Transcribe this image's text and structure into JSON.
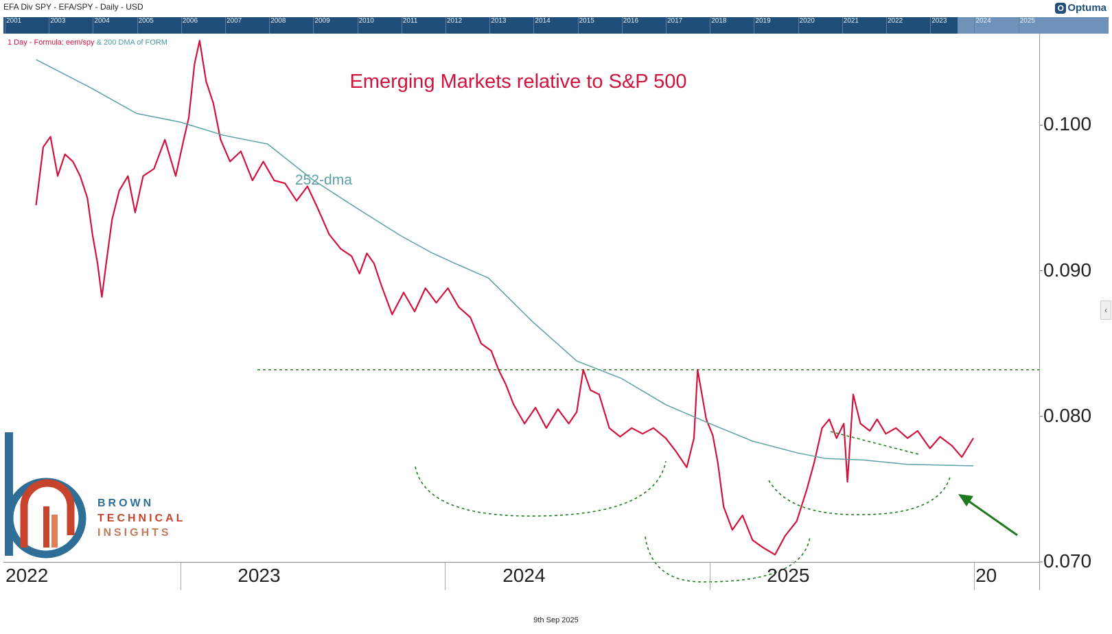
{
  "header": {
    "title": "EFA Div SPY -  EFA/SPY - Daily - USD",
    "brand": "Optuma"
  },
  "overview_strip": {
    "years": [
      "2001",
      "2003",
      "2004",
      "2005",
      "2006",
      "2007",
      "2008",
      "2009",
      "2010",
      "2011",
      "2012",
      "2013",
      "2014",
      "2015",
      "2016",
      "2017",
      "2018",
      "2019",
      "2020",
      "2021",
      "2022",
      "2023",
      "2024",
      "2025"
    ]
  },
  "legend": {
    "main": "1 Day - Formula:  eem/spy",
    "secondary": "& 200 DMA of FORM"
  },
  "annotations": {
    "dma_label": "252-dma"
  },
  "branding": {
    "line1": "BROWN",
    "line2": "TECHNICAL",
    "line3": "INSIGHTS"
  },
  "footer": {
    "date": "9th Sep 2025"
  },
  "colors": {
    "ratio": "#d0133d",
    "dma": "#5aa0a5",
    "support": "#1e7a1e",
    "arrow": "#1e7a1e",
    "strip": "#1f4e79"
  },
  "chart_data": {
    "type": "line",
    "title": "Emerging Markets relative to S&P 500",
    "y_axis": {
      "ticks": [
        "0.070",
        "0.080",
        "0.090",
        "0.100"
      ],
      "ylim": [
        0.07,
        0.106
      ],
      "position": "right"
    },
    "x_axis": {
      "ticks": [
        "2022",
        "2023",
        "2024",
        "2025",
        "20"
      ]
    },
    "resistance_level": 0.0832,
    "series": [
      {
        "name": "1 Day - Formula: eem/spy",
        "points": [
          [
            "2022-06-15",
            0.0945
          ],
          [
            "2022-06-25",
            0.0985
          ],
          [
            "2022-07-05",
            0.0992
          ],
          [
            "2022-07-15",
            0.0965
          ],
          [
            "2022-07-25",
            0.098
          ],
          [
            "2022-08-05",
            0.0975
          ],
          [
            "2022-08-15",
            0.0965
          ],
          [
            "2022-08-25",
            0.095
          ],
          [
            "2022-09-01",
            0.0925
          ],
          [
            "2022-09-08",
            0.0905
          ],
          [
            "2022-09-14",
            0.0882
          ],
          [
            "2022-09-20",
            0.0905
          ],
          [
            "2022-09-28",
            0.0935
          ],
          [
            "2022-10-08",
            0.0955
          ],
          [
            "2022-10-20",
            0.0965
          ],
          [
            "2022-10-30",
            0.094
          ],
          [
            "2022-11-10",
            0.0965
          ],
          [
            "2022-11-25",
            0.097
          ],
          [
            "2022-12-10",
            0.099
          ],
          [
            "2022-12-25",
            0.0965
          ],
          [
            "2023-01-05",
            0.099
          ],
          [
            "2023-01-12",
            0.1005
          ],
          [
            "2023-01-20",
            0.1042
          ],
          [
            "2023-01-27",
            0.1058
          ],
          [
            "2023-02-05",
            0.103
          ],
          [
            "2023-02-15",
            0.1015
          ],
          [
            "2023-02-25",
            0.099
          ],
          [
            "2023-03-10",
            0.0975
          ],
          [
            "2023-03-25",
            0.0982
          ],
          [
            "2023-04-10",
            0.0962
          ],
          [
            "2023-04-25",
            0.0975
          ],
          [
            "2023-05-10",
            0.0962
          ],
          [
            "2023-05-25",
            0.096
          ],
          [
            "2023-06-10",
            0.0948
          ],
          [
            "2023-06-25",
            0.0958
          ],
          [
            "2023-07-10",
            0.0942
          ],
          [
            "2023-07-25",
            0.0925
          ],
          [
            "2023-08-10",
            0.0915
          ],
          [
            "2023-08-25",
            0.091
          ],
          [
            "2023-09-05",
            0.0898
          ],
          [
            "2023-09-15",
            0.0912
          ],
          [
            "2023-09-25",
            0.0905
          ],
          [
            "2023-10-05",
            0.089
          ],
          [
            "2023-10-20",
            0.087
          ],
          [
            "2023-11-05",
            0.0885
          ],
          [
            "2023-11-20",
            0.0872
          ],
          [
            "2023-12-05",
            0.0888
          ],
          [
            "2023-12-20",
            0.0878
          ],
          [
            "2024-01-05",
            0.0888
          ],
          [
            "2024-01-20",
            0.0875
          ],
          [
            "2024-02-05",
            0.0868
          ],
          [
            "2024-02-20",
            0.085
          ],
          [
            "2024-03-05",
            0.0845
          ],
          [
            "2024-03-15",
            0.0832
          ],
          [
            "2024-03-25",
            0.0822
          ],
          [
            "2024-04-05",
            0.0808
          ],
          [
            "2024-04-20",
            0.0795
          ],
          [
            "2024-05-05",
            0.0806
          ],
          [
            "2024-05-20",
            0.0792
          ],
          [
            "2024-06-05",
            0.0805
          ],
          [
            "2024-06-20",
            0.0795
          ],
          [
            "2024-07-01",
            0.0803
          ],
          [
            "2024-07-10",
            0.0832
          ],
          [
            "2024-07-20",
            0.0818
          ],
          [
            "2024-08-01",
            0.0815
          ],
          [
            "2024-08-15",
            0.0792
          ],
          [
            "2024-08-30",
            0.0786
          ],
          [
            "2024-09-15",
            0.0792
          ],
          [
            "2024-09-30",
            0.0788
          ],
          [
            "2024-10-15",
            0.0792
          ],
          [
            "2024-11-01",
            0.0785
          ],
          [
            "2024-11-15",
            0.0776
          ],
          [
            "2024-11-30",
            0.0765
          ],
          [
            "2024-12-10",
            0.0785
          ],
          [
            "2024-12-15",
            0.0832
          ],
          [
            "2024-12-20",
            0.0818
          ],
          [
            "2024-12-27",
            0.0798
          ],
          [
            "2025-01-05",
            0.0787
          ],
          [
            "2025-01-12",
            0.0768
          ],
          [
            "2025-01-20",
            0.0738
          ],
          [
            "2025-02-01",
            0.0722
          ],
          [
            "2025-02-15",
            0.0732
          ],
          [
            "2025-03-01",
            0.0715
          ],
          [
            "2025-03-15",
            0.071
          ],
          [
            "2025-04-01",
            0.0705
          ],
          [
            "2025-04-15",
            0.0718
          ],
          [
            "2025-05-01",
            0.0728
          ],
          [
            "2025-05-15",
            0.075
          ],
          [
            "2025-05-25",
            0.0768
          ],
          [
            "2025-06-05",
            0.0792
          ],
          [
            "2025-06-15",
            0.0798
          ],
          [
            "2025-06-25",
            0.0785
          ],
          [
            "2025-07-05",
            0.0795
          ],
          [
            "2025-07-10",
            0.0755
          ],
          [
            "2025-07-18",
            0.0815
          ],
          [
            "2025-07-28",
            0.0795
          ],
          [
            "2025-08-10",
            0.079
          ],
          [
            "2025-08-20",
            0.0798
          ],
          [
            "2025-09-01",
            0.0788
          ],
          [
            "2025-09-15",
            0.0792
          ],
          [
            "2025-10-01",
            0.0785
          ],
          [
            "2025-10-15",
            0.079
          ],
          [
            "2025-11-01",
            0.0778
          ],
          [
            "2025-11-15",
            0.0786
          ],
          [
            "2025-12-01",
            0.078
          ],
          [
            "2025-12-15",
            0.0772
          ],
          [
            "2025-12-31",
            0.0785
          ]
        ]
      },
      {
        "name": "252-dma",
        "points": [
          [
            "2022-06-15",
            0.1045
          ],
          [
            "2022-09-01",
            0.1025
          ],
          [
            "2022-11-01",
            0.1008
          ],
          [
            "2023-01-01",
            0.1002
          ],
          [
            "2023-03-01",
            0.0993
          ],
          [
            "2023-05-01",
            0.0987
          ],
          [
            "2023-07-01",
            0.0963
          ],
          [
            "2023-09-01",
            0.0943
          ],
          [
            "2023-11-01",
            0.0924
          ],
          [
            "2023-12-15",
            0.0912
          ],
          [
            "2024-01-15",
            0.0905
          ],
          [
            "2024-03-01",
            0.0895
          ],
          [
            "2024-05-01",
            0.0865
          ],
          [
            "2024-07-01",
            0.0838
          ],
          [
            "2024-09-01",
            0.0826
          ],
          [
            "2024-11-01",
            0.0808
          ],
          [
            "2025-01-01",
            0.0795
          ],
          [
            "2025-03-01",
            0.0783
          ],
          [
            "2025-05-01",
            0.0775
          ],
          [
            "2025-06-10",
            0.0771
          ],
          [
            "2025-08-01",
            0.077
          ],
          [
            "2025-10-01",
            0.0767
          ],
          [
            "2025-12-31",
            0.0766
          ]
        ]
      }
    ]
  }
}
